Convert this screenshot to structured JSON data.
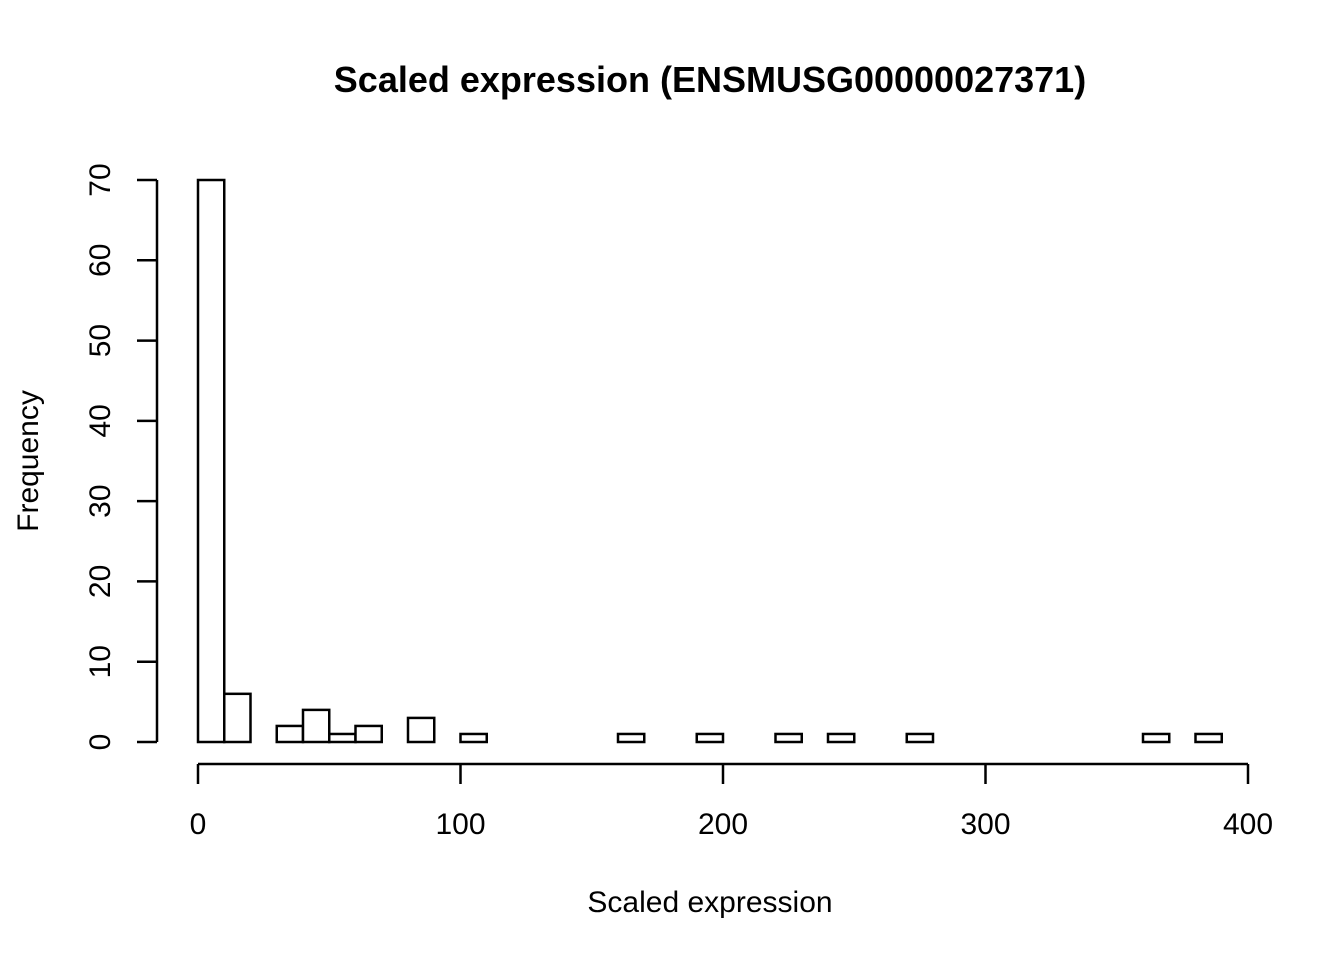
{
  "chart_data": {
    "type": "bar",
    "title": "Scaled expression (ENSMUSG00000027371)",
    "xlabel": "Scaled expression",
    "ylabel": "Frequency",
    "xlim": [
      0,
      400
    ],
    "ylim": [
      0,
      70
    ],
    "x_ticks": [
      "0",
      "100",
      "200",
      "300",
      "400"
    ],
    "y_ticks": [
      "0",
      "10",
      "20",
      "30",
      "40",
      "50",
      "60",
      "70"
    ],
    "bin_width": 10,
    "bins": [
      {
        "start": 0,
        "end": 10,
        "count": 70
      },
      {
        "start": 10,
        "end": 20,
        "count": 6
      },
      {
        "start": 20,
        "end": 30,
        "count": 0
      },
      {
        "start": 30,
        "end": 40,
        "count": 2
      },
      {
        "start": 40,
        "end": 50,
        "count": 4
      },
      {
        "start": 50,
        "end": 60,
        "count": 1
      },
      {
        "start": 60,
        "end": 70,
        "count": 2
      },
      {
        "start": 70,
        "end": 80,
        "count": 0
      },
      {
        "start": 80,
        "end": 90,
        "count": 3
      },
      {
        "start": 90,
        "end": 100,
        "count": 0
      },
      {
        "start": 100,
        "end": 110,
        "count": 1
      },
      {
        "start": 110,
        "end": 120,
        "count": 0
      },
      {
        "start": 120,
        "end": 130,
        "count": 0
      },
      {
        "start": 130,
        "end": 140,
        "count": 0
      },
      {
        "start": 140,
        "end": 150,
        "count": 0
      },
      {
        "start": 150,
        "end": 160,
        "count": 0
      },
      {
        "start": 160,
        "end": 170,
        "count": 1
      },
      {
        "start": 170,
        "end": 180,
        "count": 0
      },
      {
        "start": 180,
        "end": 190,
        "count": 0
      },
      {
        "start": 190,
        "end": 200,
        "count": 1
      },
      {
        "start": 200,
        "end": 210,
        "count": 0
      },
      {
        "start": 210,
        "end": 220,
        "count": 0
      },
      {
        "start": 220,
        "end": 230,
        "count": 1
      },
      {
        "start": 230,
        "end": 240,
        "count": 0
      },
      {
        "start": 240,
        "end": 250,
        "count": 1
      },
      {
        "start": 250,
        "end": 260,
        "count": 0
      },
      {
        "start": 260,
        "end": 270,
        "count": 0
      },
      {
        "start": 270,
        "end": 280,
        "count": 1
      },
      {
        "start": 280,
        "end": 290,
        "count": 0
      },
      {
        "start": 290,
        "end": 300,
        "count": 0
      },
      {
        "start": 300,
        "end": 310,
        "count": 0
      },
      {
        "start": 310,
        "end": 320,
        "count": 0
      },
      {
        "start": 320,
        "end": 330,
        "count": 0
      },
      {
        "start": 330,
        "end": 340,
        "count": 0
      },
      {
        "start": 340,
        "end": 350,
        "count": 0
      },
      {
        "start": 350,
        "end": 360,
        "count": 0
      },
      {
        "start": 360,
        "end": 370,
        "count": 1
      },
      {
        "start": 370,
        "end": 380,
        "count": 0
      },
      {
        "start": 380,
        "end": 390,
        "count": 1
      }
    ],
    "grid": false,
    "legend": "none"
  }
}
